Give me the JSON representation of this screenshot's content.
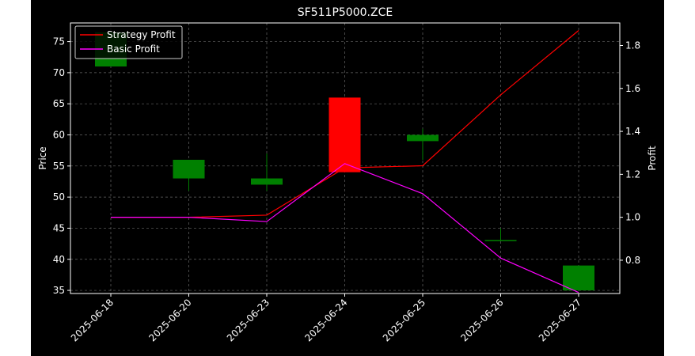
{
  "chart_data": {
    "type": "candlestick",
    "title": "SF511P5000.ZCE",
    "xlabel": "",
    "ylabel": "Price",
    "y2label": "Profit",
    "categories": [
      "2025-06-18",
      "2025-06-20",
      "2025-06-23",
      "2025-06-24",
      "2025-06-25",
      "2025-06-26",
      "2025-06-27"
    ],
    "ohlc": [
      {
        "date": "2025-06-18",
        "open": 71,
        "high": 76.5,
        "low": 71,
        "close": 76.5
      },
      {
        "date": "2025-06-20",
        "open": 53,
        "high": 56,
        "low": 51,
        "close": 56
      },
      {
        "date": "2025-06-23",
        "open": 52,
        "high": 57,
        "low": 51,
        "close": 53
      },
      {
        "date": "2025-06-24",
        "open": 66,
        "high": 66,
        "low": 54,
        "close": 54
      },
      {
        "date": "2025-06-25",
        "open": 59,
        "high": 61,
        "low": 56,
        "close": 60
      },
      {
        "date": "2025-06-26",
        "open": 43,
        "high": 45,
        "low": 43,
        "close": 43
      },
      {
        "date": "2025-06-27",
        "open": 35,
        "high": 39,
        "low": 35,
        "close": 39
      }
    ],
    "series": [
      {
        "name": "Strategy Profit",
        "color": "#ff0000",
        "values": [
          1.0,
          1.0,
          1.01,
          1.23,
          1.24,
          1.57,
          1.87
        ]
      },
      {
        "name": "Basic Profit",
        "color": "#ff00ff",
        "values": [
          1.0,
          1.0,
          0.98,
          1.25,
          1.11,
          0.81,
          0.65
        ]
      }
    ],
    "ylim": [
      34.5,
      78
    ],
    "y2lim": [
      0.645,
      1.905
    ],
    "yticks": [
      35,
      40,
      45,
      50,
      55,
      60,
      65,
      70,
      75
    ],
    "y2ticks": [
      0.8,
      1.0,
      1.2,
      1.4,
      1.6,
      1.8
    ],
    "colors": {
      "up": "#008000",
      "down": "#ff0000",
      "background": "#000000",
      "grid": "#808080",
      "text": "#ffffff"
    },
    "grid": true,
    "legend_position": "upper-left"
  }
}
